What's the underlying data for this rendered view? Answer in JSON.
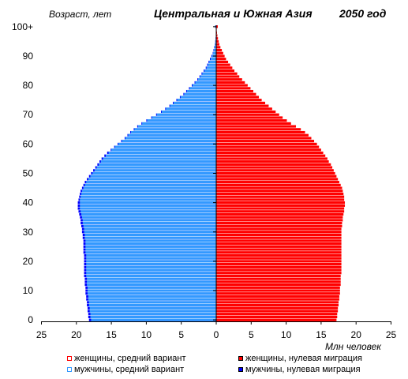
{
  "chart_data": {
    "type": "bar",
    "orientation": "horizontal",
    "subtype": "population-pyramid",
    "title": "Центральная и Южная Азия",
    "year_label": "2050 год",
    "ylabel": "Возраст, лет",
    "xlabel": "Млн человек",
    "x_ticks": [
      "25",
      "20",
      "15",
      "10",
      "5",
      "0",
      "5",
      "10",
      "15",
      "20",
      "25"
    ],
    "y_ticks": [
      "0",
      "10",
      "20",
      "30",
      "40",
      "50",
      "60",
      "70",
      "80",
      "90",
      "100+"
    ],
    "xlim": [
      -25,
      25
    ],
    "ylim": [
      0,
      100
    ],
    "ages": [
      0,
      1,
      2,
      3,
      4,
      5,
      6,
      7,
      8,
      9,
      10,
      11,
      12,
      13,
      14,
      15,
      16,
      17,
      18,
      19,
      20,
      21,
      22,
      23,
      24,
      25,
      26,
      27,
      28,
      29,
      30,
      31,
      32,
      33,
      34,
      35,
      36,
      37,
      38,
      39,
      40,
      41,
      42,
      43,
      44,
      45,
      46,
      47,
      48,
      49,
      50,
      51,
      52,
      53,
      54,
      55,
      56,
      57,
      58,
      59,
      60,
      61,
      62,
      63,
      64,
      65,
      66,
      67,
      68,
      69,
      70,
      71,
      72,
      73,
      74,
      75,
      76,
      77,
      78,
      79,
      80,
      81,
      82,
      83,
      84,
      85,
      86,
      87,
      88,
      89,
      90,
      91,
      92,
      93,
      94,
      95,
      96,
      97,
      98,
      99,
      100
    ],
    "series": [
      {
        "name": "женщины, средний вариант",
        "side": "right",
        "values": [
          17.0,
          17.1,
          17.1,
          17.2,
          17.2,
          17.3,
          17.3,
          17.4,
          17.4,
          17.5,
          17.5,
          17.5,
          17.6,
          17.6,
          17.6,
          17.6,
          17.7,
          17.7,
          17.7,
          17.7,
          17.7,
          17.7,
          17.7,
          17.7,
          17.7,
          17.7,
          17.7,
          17.7,
          17.7,
          17.7,
          17.7,
          17.7,
          17.8,
          17.8,
          17.9,
          17.9,
          18.0,
          18.1,
          18.1,
          18.2,
          18.2,
          18.1,
          18.1,
          18.0,
          17.9,
          17.8,
          17.7,
          17.5,
          17.3,
          17.1,
          16.9,
          16.7,
          16.5,
          16.3,
          16.0,
          15.8,
          15.5,
          15.2,
          14.9,
          14.6,
          14.3,
          13.9,
          13.5,
          13.1,
          12.6,
          12.0,
          11.3,
          10.6,
          10.0,
          9.4,
          8.9,
          8.4,
          7.9,
          7.4,
          6.9,
          6.4,
          6.0,
          5.6,
          5.2,
          4.8,
          4.4,
          4.0,
          3.6,
          3.2,
          2.9,
          2.5,
          2.2,
          1.9,
          1.6,
          1.3,
          1.1,
          0.9,
          0.7,
          0.55,
          0.4,
          0.3,
          0.22,
          0.15,
          0.1,
          0.06,
          0.2
        ],
        "color": "#ff0000"
      },
      {
        "name": "мужчины, средний вариант",
        "side": "left",
        "values": [
          17.9,
          18.0,
          18.0,
          18.1,
          18.1,
          18.2,
          18.2,
          18.3,
          18.3,
          18.4,
          18.4,
          18.4,
          18.5,
          18.5,
          18.5,
          18.6,
          18.6,
          18.6,
          18.6,
          18.6,
          18.6,
          18.6,
          18.6,
          18.7,
          18.7,
          18.7,
          18.7,
          18.7,
          18.8,
          18.8,
          18.9,
          18.9,
          19.0,
          19.1,
          19.1,
          19.2,
          19.3,
          19.4,
          19.5,
          19.5,
          19.5,
          19.5,
          19.4,
          19.3,
          19.2,
          19.0,
          18.8,
          18.6,
          18.3,
          18.0,
          17.7,
          17.4,
          17.1,
          16.8,
          16.5,
          16.2,
          15.8,
          15.4,
          15.0,
          14.5,
          14.0,
          13.5,
          13.0,
          12.6,
          12.2,
          11.7,
          11.2,
          10.6,
          9.9,
          9.2,
          8.5,
          7.8,
          7.2,
          6.6,
          6.1,
          5.6,
          5.1,
          4.6,
          4.2,
          3.8,
          3.4,
          3.0,
          2.6,
          2.3,
          2.0,
          1.7,
          1.4,
          1.2,
          1.0,
          0.8,
          0.6,
          0.45,
          0.35,
          0.25,
          0.18,
          0.12,
          0.08,
          0.05,
          0.03,
          0.02,
          0.15
        ],
        "color": "#3399ff"
      },
      {
        "name": "женщины, нулевая миграция",
        "side": "right",
        "values": [
          17.2,
          17.3,
          17.3,
          17.4,
          17.4,
          17.5,
          17.5,
          17.6,
          17.6,
          17.7,
          17.7,
          17.7,
          17.8,
          17.8,
          17.8,
          17.8,
          17.9,
          17.9,
          17.9,
          17.9,
          17.9,
          17.9,
          17.9,
          17.9,
          17.9,
          17.9,
          17.9,
          17.9,
          17.9,
          17.9,
          17.9,
          17.9,
          18.0,
          18.0,
          18.1,
          18.1,
          18.2,
          18.3,
          18.3,
          18.4,
          18.4,
          18.3,
          18.3,
          18.2,
          18.1,
          18.0,
          17.8,
          17.6,
          17.4,
          17.2,
          17.0,
          16.8,
          16.6,
          16.4,
          16.1,
          15.9,
          15.6,
          15.3,
          15.0,
          14.7,
          14.4,
          14.0,
          13.6,
          13.2,
          12.7,
          12.1,
          11.4,
          10.7,
          10.1,
          9.5,
          9.0,
          8.5,
          8.0,
          7.5,
          7.0,
          6.5,
          6.1,
          5.7,
          5.3,
          4.9,
          4.5,
          4.1,
          3.7,
          3.3,
          3.0,
          2.6,
          2.3,
          2.0,
          1.7,
          1.4,
          1.2,
          1.0,
          0.8,
          0.6,
          0.45,
          0.35,
          0.25,
          0.17,
          0.11,
          0.07,
          0.22
        ],
        "color": "#ff0000"
      },
      {
        "name": "мужчины, нулевая миграция",
        "side": "left",
        "values": [
          18.2,
          18.3,
          18.3,
          18.4,
          18.4,
          18.5,
          18.5,
          18.6,
          18.6,
          18.7,
          18.7,
          18.7,
          18.8,
          18.8,
          18.8,
          18.9,
          18.9,
          18.9,
          18.9,
          18.9,
          18.9,
          18.9,
          18.9,
          19.0,
          19.0,
          19.0,
          19.0,
          19.0,
          19.1,
          19.1,
          19.2,
          19.2,
          19.3,
          19.4,
          19.4,
          19.5,
          19.6,
          19.7,
          19.8,
          19.8,
          19.8,
          19.7,
          19.6,
          19.5,
          19.4,
          19.2,
          19.0,
          18.8,
          18.5,
          18.2,
          17.9,
          17.6,
          17.3,
          17.0,
          16.7,
          16.4,
          16.0,
          15.6,
          15.1,
          14.6,
          14.1,
          13.6,
          13.1,
          12.7,
          12.3,
          11.8,
          11.3,
          10.7,
          10.0,
          9.3,
          8.6,
          7.9,
          7.3,
          6.7,
          6.2,
          5.7,
          5.2,
          4.7,
          4.3,
          3.9,
          3.5,
          3.1,
          2.7,
          2.4,
          2.1,
          1.8,
          1.5,
          1.3,
          1.1,
          0.9,
          0.7,
          0.5,
          0.4,
          0.3,
          0.2,
          0.14,
          0.09,
          0.06,
          0.04,
          0.03,
          0.17
        ],
        "color": "#0000ff"
      }
    ],
    "legend_placement": "bottom",
    "grid": false
  }
}
